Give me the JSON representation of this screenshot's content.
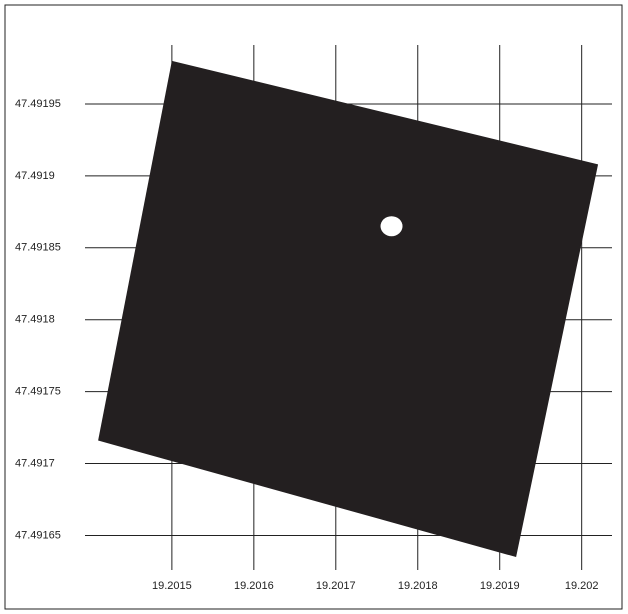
{
  "chart_data": {
    "type": "polygon",
    "polygon": {
      "x": [
        19.2015,
        19.20202,
        19.20192,
        19.20141
      ],
      "y": [
        47.49198,
        47.491908,
        47.491635,
        47.491716
      ],
      "color": "#231f20"
    },
    "point": {
      "x": 19.201768,
      "y": 47.491865,
      "color": "#ffffff"
    },
    "xlim": [
      19.201394,
      19.202037
    ],
    "ylim": [
      47.491626,
      47.491991
    ],
    "xticks": [
      19.2015,
      19.2016,
      19.2017,
      19.2018,
      19.2019,
      19.202
    ],
    "yticks": [
      47.49165,
      47.4917,
      47.49175,
      47.4918,
      47.49185,
      47.4919,
      47.49195
    ],
    "grid": true
  }
}
